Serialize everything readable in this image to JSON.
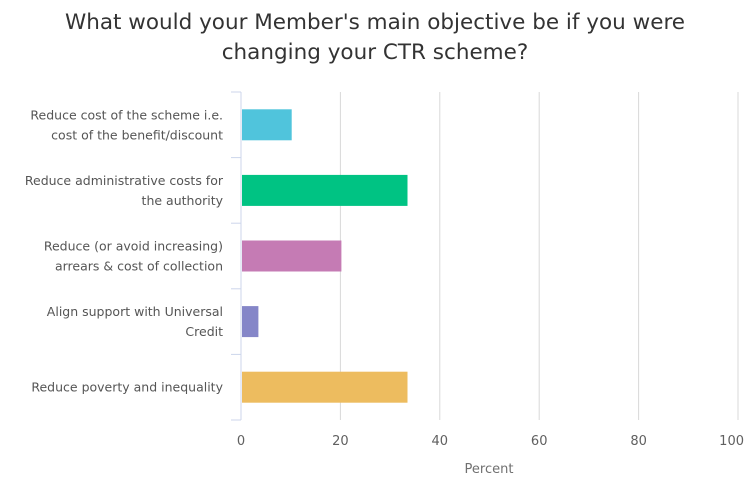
{
  "chart_data": {
    "type": "bar",
    "orientation": "horizontal",
    "title_lines": [
      "What would your Member's main objective be if you were",
      "changing your CTR scheme?"
    ],
    "categories": [
      [
        "Reduce cost of the scheme i.e.",
        "cost of the benefit/discount"
      ],
      [
        "Reduce administrative costs for",
        "the authority"
      ],
      [
        "Reduce (or avoid increasing)",
        "arrears & cost of collection"
      ],
      [
        "Align support with Universal",
        "Credit"
      ],
      [
        "Reduce poverty and inequality"
      ]
    ],
    "values": [
      10,
      33.3,
      20,
      3.3,
      33.3
    ],
    "colors": [
      "#50c4dc",
      "#00c383",
      "#c57bb4",
      "#8586c8",
      "#edbc5f"
    ],
    "xlabel": "Percent",
    "xlim": [
      0,
      100
    ],
    "ticks": [
      "0",
      "20",
      "40",
      "60",
      "80",
      "100"
    ],
    "tick_values": [
      0,
      20,
      40,
      60,
      80,
      100
    ],
    "grid": true
  }
}
